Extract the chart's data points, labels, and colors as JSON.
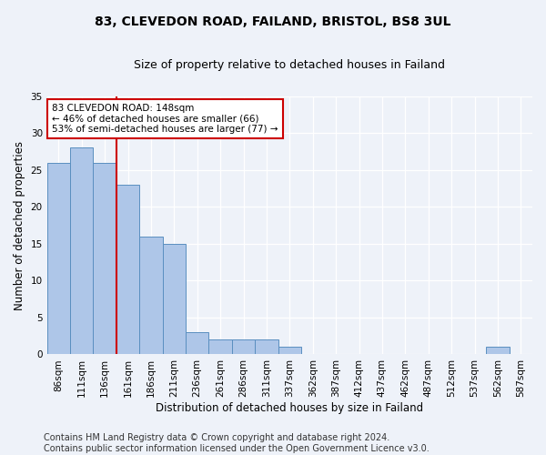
{
  "title": "83, CLEVEDON ROAD, FAILAND, BRISTOL, BS8 3UL",
  "subtitle": "Size of property relative to detached houses in Failand",
  "xlabel": "Distribution of detached houses by size in Failand",
  "ylabel": "Number of detached properties",
  "bar_labels": [
    "86sqm",
    "111sqm",
    "136sqm",
    "161sqm",
    "186sqm",
    "211sqm",
    "236sqm",
    "261sqm",
    "286sqm",
    "311sqm",
    "337sqm",
    "362sqm",
    "387sqm",
    "412sqm",
    "437sqm",
    "462sqm",
    "487sqm",
    "512sqm",
    "537sqm",
    "562sqm",
    "587sqm"
  ],
  "bar_values": [
    26,
    28,
    26,
    23,
    16,
    15,
    3,
    2,
    2,
    2,
    1,
    0,
    0,
    0,
    0,
    0,
    0,
    0,
    0,
    1,
    0
  ],
  "bar_color": "#aec6e8",
  "bar_edge_color": "#5a8fc0",
  "vline_color": "#cc0000",
  "annotation_text": "83 CLEVEDON ROAD: 148sqm\n← 46% of detached houses are smaller (66)\n53% of semi-detached houses are larger (77) →",
  "annotation_box_color": "#ffffff",
  "annotation_box_edge": "#cc0000",
  "ylim": [
    0,
    35
  ],
  "yticks": [
    0,
    5,
    10,
    15,
    20,
    25,
    30,
    35
  ],
  "footer_line1": "Contains HM Land Registry data © Crown copyright and database right 2024.",
  "footer_line2": "Contains public sector information licensed under the Open Government Licence v3.0.",
  "background_color": "#eef2f9",
  "grid_color": "#ffffff",
  "title_fontsize": 10,
  "subtitle_fontsize": 9,
  "axis_label_fontsize": 8.5,
  "tick_fontsize": 7.5,
  "footer_fontsize": 7,
  "annotation_fontsize": 7.5
}
